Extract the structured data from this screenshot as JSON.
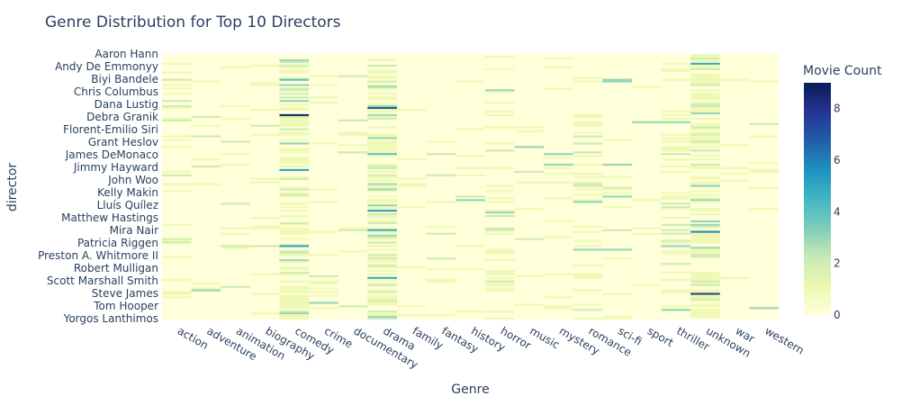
{
  "chart_data": {
    "type": "heatmap",
    "title": "Genre Distribution for Top 10 Directors",
    "xlabel": "Genre",
    "ylabel": "director",
    "x_categories": [
      "action",
      "adventure",
      "animation",
      "biography",
      "comedy",
      "crime",
      "documentary",
      "drama",
      "family",
      "fantasy",
      "history",
      "horror",
      "music",
      "mystery",
      "romance",
      "sci-fi",
      "sport",
      "thriller",
      "unknown",
      "war",
      "western"
    ],
    "y_tick_labels": [
      "Aaron Hann",
      "Andy De Emmonyy",
      "Biyi Bandele",
      "Chris Columbus",
      "Dana Lustig",
      "Debra Granik",
      "Florent-Emilio Siri",
      "Grant Heslov",
      "James DeMonaco",
      "Jimmy Hayward",
      "John Woo",
      "Kelly Makin",
      "Lluís Quílez",
      "Matthew Hastings",
      "Mira Nair",
      "Patricia Riggen",
      "Preston A. Whitmore II",
      "Robert Mulligan",
      "Scott Marshall Smith",
      "Steve James",
      "Tom Hooper",
      "Yorgos Lanthimos"
    ],
    "colorbar": {
      "title": "Movie Count",
      "range": [
        0,
        9
      ],
      "ticks": [
        0,
        2,
        4,
        6,
        8
      ],
      "colorscale": [
        "#ffffd9",
        "#edf8b1",
        "#c7e9b4",
        "#7fcdbb",
        "#41b6c4",
        "#1d91c0",
        "#225ea8",
        "#253494",
        "#081d58"
      ]
    },
    "notable_cells": [
      {
        "director_row": 34,
        "genre": "comedy",
        "value": 9
      },
      {
        "director_row": 30,
        "genre": "drama",
        "value": 7
      },
      {
        "director_row": 18,
        "genre": "drama",
        "value": 3
      },
      {
        "director_row": 56,
        "genre": "drama",
        "value": 4
      },
      {
        "director_row": 88,
        "genre": "drama",
        "value": 5
      },
      {
        "director_row": 135,
        "genre": "unknown",
        "value": 8
      },
      {
        "director_row": 5,
        "genre": "unknown",
        "value": 5
      },
      {
        "director_row": 100,
        "genre": "unknown",
        "value": 6
      },
      {
        "director_row": 14,
        "genre": "comedy",
        "value": 4
      },
      {
        "director_row": 65,
        "genre": "comedy",
        "value": 5
      },
      {
        "director_row": 108,
        "genre": "comedy",
        "value": 5
      },
      {
        "director_row": 99,
        "genre": "drama",
        "value": 5
      },
      {
        "director_row": 126,
        "genre": "drama",
        "value": 5
      }
    ]
  }
}
